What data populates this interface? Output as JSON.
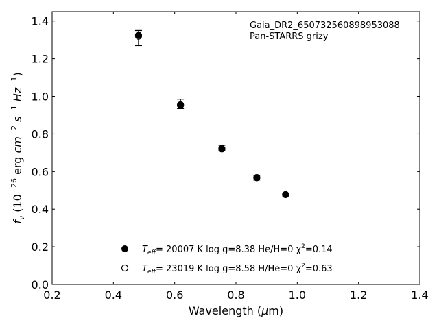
{
  "chart_data": {
    "type": "scatter",
    "xlabel": "Wavelength (μm)",
    "ylabel": "f_ν (10^−26 erg cm^−2 s^−1 Hz^−1)",
    "xlim": [
      0.2,
      1.4
    ],
    "ylim": [
      0.0,
      1.45
    ],
    "xticks": [
      "0.2",
      "0.4",
      "0.6",
      "0.8",
      "1.0",
      "1.2",
      "1.4"
    ],
    "yticks": [
      "0.0",
      "0.2",
      "0.4",
      "0.6",
      "0.8",
      "1.0",
      "1.2",
      "1.4"
    ],
    "grid": false,
    "annotation": {
      "line1": "Gaia_DR2_650732560898953088",
      "line2": "Pan-STARRS grizy"
    },
    "observed": {
      "x": [
        0.482,
        0.619,
        0.754,
        0.868,
        0.962
      ],
      "y": [
        1.31,
        0.96,
        0.72,
        0.57,
        0.48
      ],
      "yerr_low": [
        1.27,
        0.935,
        0.71,
        0.555,
        0.465
      ],
      "yerr_high": [
        1.35,
        0.985,
        0.74,
        0.58,
        0.485
      ]
    },
    "series": [
      {
        "marker": "filled",
        "x": [
          0.482,
          0.619,
          0.754,
          0.868,
          0.962
        ],
        "y": [
          1.325,
          0.952,
          0.72,
          0.567,
          0.477
        ]
      },
      {
        "marker": "open",
        "x": [
          0.482,
          0.619,
          0.754,
          0.868,
          0.962
        ],
        "y": [
          1.32,
          0.955,
          0.722,
          0.568,
          0.478
        ]
      }
    ],
    "legend": {
      "placement": "lower-center",
      "entries": [
        {
          "marker": "filled",
          "teff_label": "T",
          "teff_sub": "eff",
          "text": "= 20007 K  log g=8.38  He/H=0  χ",
          "chi_sup": "2",
          "chi_value": "=0.14"
        },
        {
          "marker": "open",
          "teff_label": "T",
          "teff_sub": "eff",
          "text": "= 23019 K  log g=8.58  H/He=0  χ",
          "chi_sup": "2",
          "chi_value": "=0.63"
        }
      ]
    }
  }
}
